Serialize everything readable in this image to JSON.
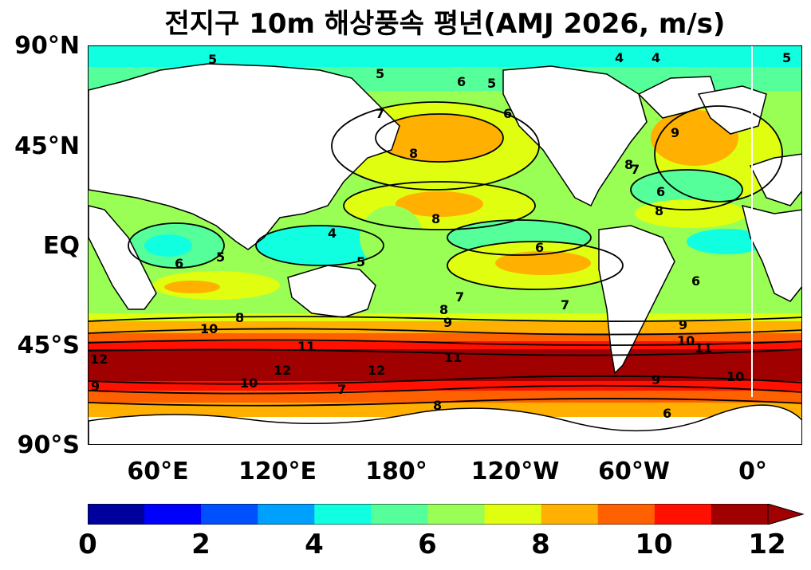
{
  "title": "전지구 10m 해상풍속 평년(AMJ 2026, m/s)",
  "lat_labels": [
    "90°N",
    "45°N",
    "EQ",
    "45°S",
    "90°S"
  ],
  "lon_labels": [
    "60°E",
    "120°E",
    "180°",
    "120°W",
    "60°W",
    "0°"
  ],
  "colorbar": {
    "ticks": [
      "0",
      "2",
      "4",
      "6",
      "8",
      "10",
      "12"
    ],
    "unit": "m/s",
    "min": 0,
    "max": 12,
    "step": 1,
    "extend": "max",
    "colors": [
      "#00009e",
      "#0000ff",
      "#0050ff",
      "#00a0ff",
      "#10ffe0",
      "#55ff99",
      "#99ff55",
      "#e0ff10",
      "#ffb000",
      "#ff6000",
      "#ff1000",
      "#a00000"
    ]
  },
  "contour_labels": [
    "5",
    "5",
    "4",
    "4",
    "5",
    "6",
    "5",
    "6",
    "7",
    "8",
    "8",
    "8",
    "9",
    "6",
    "7",
    "8",
    "6",
    "5",
    "4",
    "5",
    "6",
    "7",
    "8",
    "9",
    "10",
    "11",
    "12",
    "10",
    "9",
    "8",
    "7",
    "6",
    "11",
    "12",
    "10",
    "9",
    "12",
    "11",
    "10",
    "9",
    "8",
    "7",
    "6"
  ],
  "land_color": "#ffffff",
  "ocean_base_color": "#99ff55"
}
